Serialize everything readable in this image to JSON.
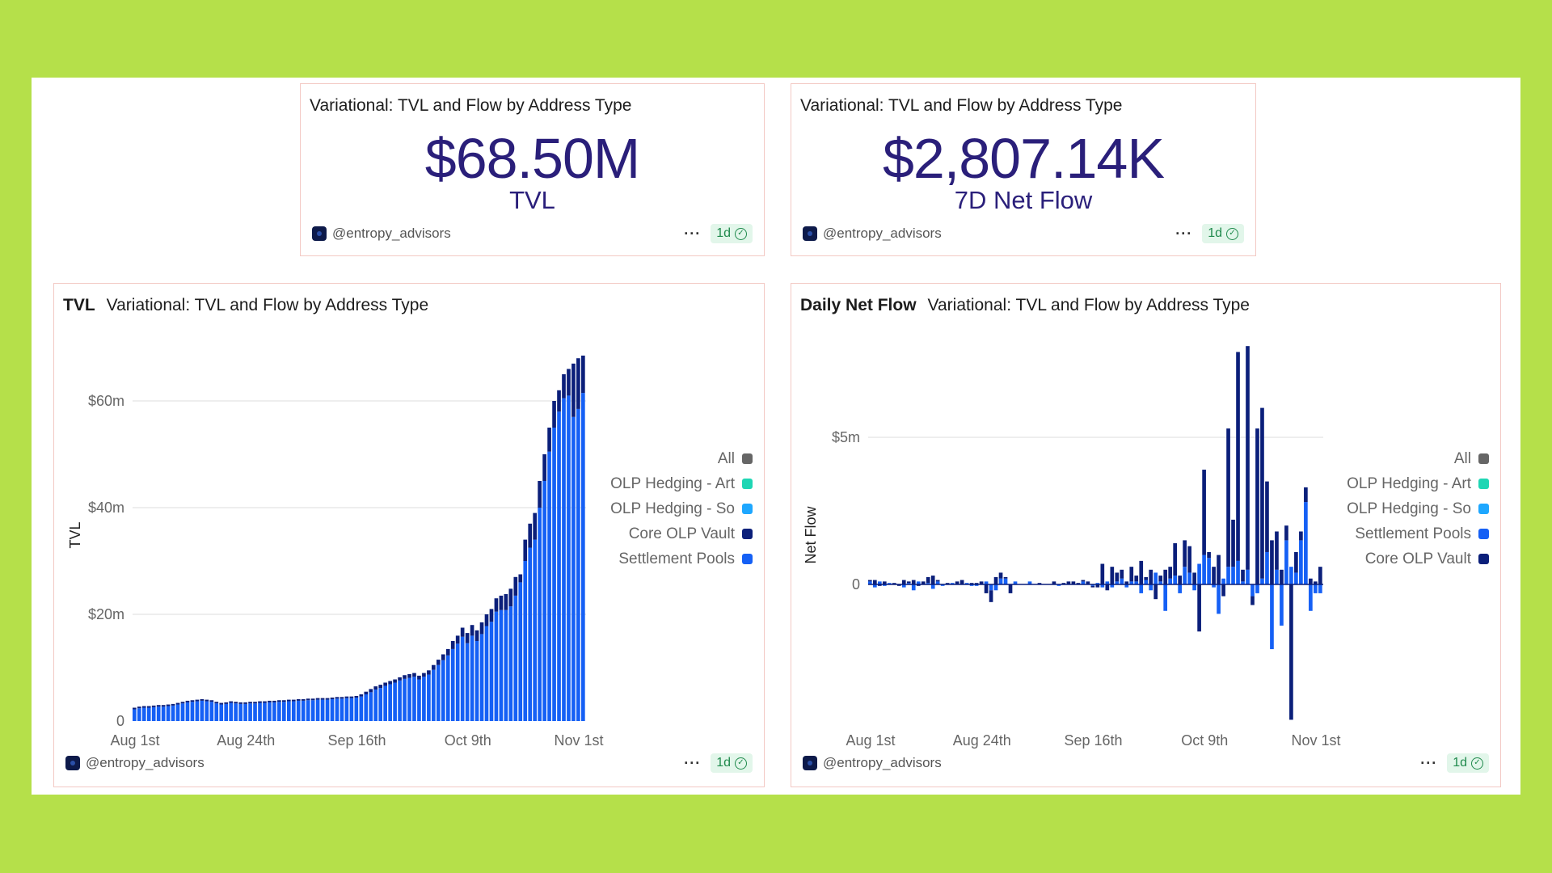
{
  "kpi_tvl": {
    "title": "Variational: TVL and Flow by Address Type",
    "value": "$68.50M",
    "label": "TVL",
    "author": "@entropy_advisors",
    "menu": "···",
    "refresh": "1d"
  },
  "kpi_flow": {
    "title": "Variational: TVL and Flow by Address Type",
    "value": "$2,807.14K",
    "label": "7D Net Flow",
    "author": "@entropy_advisors",
    "menu": "···",
    "refresh": "1d"
  },
  "tvl_card": {
    "tag": "TVL",
    "title": "Variational: TVL and Flow by Address Type",
    "author": "@entropy_advisors",
    "menu": "···",
    "refresh": "1d"
  },
  "flow_card": {
    "tag": "Daily Net Flow",
    "title": "Variational: TVL and Flow by Address Type",
    "author": "@entropy_advisors",
    "menu": "···",
    "refresh": "1d"
  },
  "legend": [
    {
      "label": "All",
      "color": "#666666"
    },
    {
      "label": "OLP Hedging - Art",
      "color": "#1fd6b4"
    },
    {
      "label": "OLP Hedging - So",
      "color": "#1ea7ff"
    },
    {
      "label": "Core OLP Vault",
      "color": "#0b1f7a"
    },
    {
      "label": "Settlement Pools",
      "color": "#1560f5"
    }
  ],
  "legend_flow_order": [
    0,
    1,
    2,
    4,
    3
  ],
  "chart_data": [
    {
      "type": "bar",
      "stacked": true,
      "title": "TVL",
      "ylabel": "TVL",
      "ylim": [
        0,
        72
      ],
      "yticks": [
        {
          "v": 0,
          "label": "0"
        },
        {
          "v": 20,
          "label": "$20m"
        },
        {
          "v": 40,
          "label": "$40m"
        },
        {
          "v": 60,
          "label": "$60m"
        }
      ],
      "xticks": [
        {
          "i": 0,
          "label": "Aug 1st"
        },
        {
          "i": 23,
          "label": "Aug 24th"
        },
        {
          "i": 46,
          "label": "Sep 16th"
        },
        {
          "i": 69,
          "label": "Oct 9th"
        },
        {
          "i": 92,
          "label": "Nov 1st"
        }
      ],
      "series": [
        {
          "name": "Settlement Pools",
          "color": "#1560f5",
          "values": [
            2.2,
            2.4,
            2.5,
            2.5,
            2.6,
            2.7,
            2.7,
            2.8,
            2.9,
            3.1,
            3.3,
            3.5,
            3.6,
            3.7,
            3.8,
            3.7,
            3.6,
            3.3,
            3.1,
            3.2,
            3.4,
            3.3,
            3.2,
            3.2,
            3.3,
            3.3,
            3.4,
            3.4,
            3.5,
            3.5,
            3.6,
            3.6,
            3.7,
            3.7,
            3.8,
            3.8,
            3.9,
            3.9,
            4.0,
            4.0,
            4.0,
            4.1,
            4.2,
            4.2,
            4.3,
            4.3,
            4.4,
            4.6,
            5.0,
            5.4,
            5.9,
            6.2,
            6.6,
            6.9,
            7.2,
            7.6,
            7.9,
            8.1,
            8.3,
            7.8,
            8.3,
            8.7,
            9.6,
            10.5,
            11.4,
            12.3,
            13.5,
            14.5,
            15.8,
            14.6,
            16.0,
            15.0,
            16.3,
            17.8,
            18.6,
            20.5,
            20.8,
            20.8,
            21.5,
            23.5,
            26.0,
            30.0,
            32.5,
            34.0,
            40.0,
            45.0,
            50.5,
            55.0,
            58.0,
            60.5,
            61.0,
            57.0,
            58.5,
            61.5
          ]
        },
        {
          "name": "Core OLP Vault",
          "color": "#0b1f7a",
          "values": [
            0.3,
            0.3,
            0.3,
            0.3,
            0.3,
            0.3,
            0.3,
            0.3,
            0.3,
            0.3,
            0.3,
            0.3,
            0.3,
            0.3,
            0.3,
            0.3,
            0.3,
            0.3,
            0.3,
            0.3,
            0.3,
            0.3,
            0.3,
            0.3,
            0.3,
            0.3,
            0.3,
            0.3,
            0.3,
            0.3,
            0.3,
            0.3,
            0.3,
            0.3,
            0.3,
            0.3,
            0.3,
            0.3,
            0.3,
            0.3,
            0.3,
            0.3,
            0.3,
            0.3,
            0.3,
            0.3,
            0.3,
            0.4,
            0.5,
            0.6,
            0.6,
            0.6,
            0.6,
            0.6,
            0.6,
            0.6,
            0.7,
            0.7,
            0.7,
            0.7,
            0.7,
            0.8,
            0.9,
            1.0,
            1.1,
            1.2,
            1.5,
            1.5,
            1.7,
            1.9,
            2.0,
            2.0,
            2.2,
            2.2,
            2.4,
            2.5,
            2.7,
            3.0,
            3.3,
            3.5,
            1.5,
            4.0,
            4.5,
            5.0,
            5.0,
            5.0,
            4.5,
            5.0,
            4.0,
            4.5,
            5.0,
            10.0,
            9.5,
            7.0
          ]
        }
      ]
    },
    {
      "type": "bar",
      "stacked": true,
      "title": "Daily Net Flow",
      "ylabel": "Net Flow",
      "ylim": [
        -4.7,
        8.1
      ],
      "yticks": [
        {
          "v": 0,
          "label": "0"
        },
        {
          "v": 5,
          "label": "$5m"
        }
      ],
      "xticks": [
        {
          "i": 0,
          "label": "Aug 1st"
        },
        {
          "i": 23,
          "label": "Aug 24th"
        },
        {
          "i": 46,
          "label": "Sep 16th"
        },
        {
          "i": 69,
          "label": "Oct 9th"
        },
        {
          "i": 92,
          "label": "Nov 1st"
        }
      ],
      "series": [
        {
          "name": "Settlement Pools",
          "color": "#1560f5",
          "values": [
            0.1,
            -0.1,
            0.1,
            -0.05,
            0.05,
            0,
            0,
            -0.1,
            0.05,
            -0.2,
            0.1,
            0,
            0.05,
            -0.15,
            0.1,
            -0.05,
            0,
            0.05,
            0,
            0,
            0.05,
            -0.05,
            -0.05,
            0,
            0.1,
            -0.2,
            -0.2,
            0.2,
            0.2,
            0,
            0.1,
            0,
            0,
            0.1,
            0,
            0,
            0,
            0,
            0,
            -0.05,
            0,
            0,
            0,
            0,
            0.1,
            0,
            -0.05,
            0.05,
            -0.1,
            0.1,
            -0.1,
            0.1,
            0.2,
            -0.1,
            0.1,
            0.1,
            -0.3,
            0.15,
            -0.2,
            0.4,
            0.1,
            -0.9,
            0.2,
            0.3,
            -0.3,
            0.6,
            0.4,
            -0.2,
            0.7,
            1.0,
            0.9,
            -0.1,
            -1.0,
            0.2,
            0.6,
            0.6,
            0.8,
            0.1,
            0.5,
            -0.4,
            -0.3,
            0.2,
            1.1,
            -2.2,
            0.5,
            -1.4,
            1.5,
            0.6,
            0.4,
            1.5,
            2.8,
            -0.9,
            -0.3,
            -0.3
          ]
        },
        {
          "name": "Core OLP Vault",
          "color": "#0b1f7a",
          "values": [
            0.05,
            0.15,
            -0.05,
            0.1,
            0,
            0.05,
            -0.05,
            0.15,
            0.05,
            0.15,
            -0.05,
            0.1,
            0.2,
            0.3,
            0.05,
            0,
            0.05,
            0,
            0.1,
            0.15,
            0,
            0.05,
            0.05,
            0.1,
            -0.3,
            -0.4,
            0.25,
            0.2,
            0.05,
            -0.3,
            0,
            0,
            0,
            0,
            0,
            0.05,
            0,
            0,
            0.1,
            0,
            0.05,
            0.1,
            0.1,
            0.05,
            0.05,
            0.1,
            -0.05,
            -0.1,
            0.7,
            -0.2,
            0.6,
            0.3,
            0.3,
            0.1,
            0.5,
            0.2,
            0.8,
            0.1,
            0.5,
            -0.5,
            0.2,
            0.5,
            0.4,
            1.1,
            0.3,
            0.9,
            0.9,
            0.4,
            -1.6,
            2.9,
            0.2,
            0.6,
            1.0,
            -0.4,
            4.7,
            1.6,
            7.1,
            0.4,
            7.6,
            -0.3,
            5.3,
            5.8,
            2.4,
            1.5,
            1.3,
            0.5,
            0.5,
            -4.6,
            0.7,
            0.3,
            0.5,
            0.2,
            0.1,
            0.6
          ]
        }
      ]
    }
  ]
}
